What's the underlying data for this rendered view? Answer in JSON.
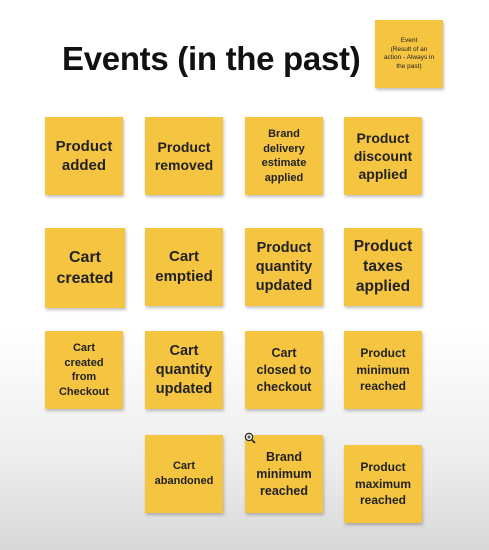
{
  "title": "Events (in the past)",
  "legend": {
    "text": "Event\n(Result of an\naction - Always in\nthe past)"
  },
  "notes": [
    {
      "label": "Product\nadded"
    },
    {
      "label": "Product\nremoved"
    },
    {
      "label": "Brand\ndelivery\nestimate\napplied"
    },
    {
      "label": "Product\ndiscount\napplied"
    },
    {
      "label": "Cart\ncreated"
    },
    {
      "label": "Cart\nemptied"
    },
    {
      "label": "Product\nquantity\nupdated"
    },
    {
      "label": "Product\ntaxes\napplied"
    },
    {
      "label": "Cart\ncreated\nfrom\nCheckout"
    },
    {
      "label": "Cart\nquantity\nupdated"
    },
    {
      "label": "Cart\nclosed to\ncheckout"
    },
    {
      "label": "Product\nminimum\nreached"
    },
    {
      "label": "Cart\nabandoned"
    },
    {
      "label": "Brand\nminimum\nreached"
    },
    {
      "label": "Product\nmaximum\nreached"
    }
  ],
  "colors": {
    "sticky": "#f5c542",
    "title": "#111111"
  },
  "icons": {
    "cursor": "zoom-cursor-icon"
  }
}
